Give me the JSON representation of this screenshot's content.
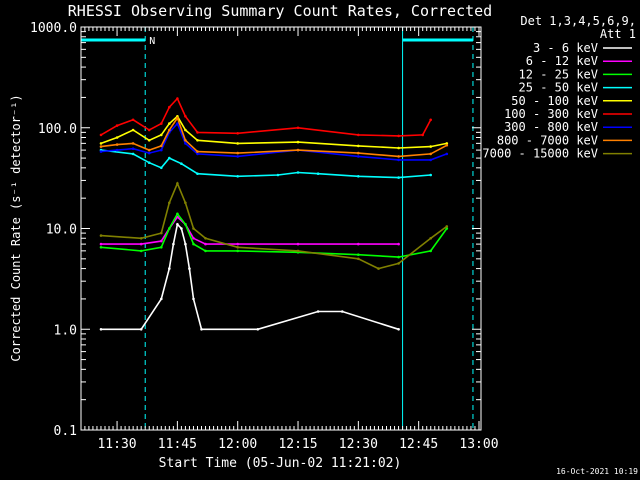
{
  "chart_data": {
    "type": "line",
    "title": "RHESSI Observing Summary Count Rates, Corrected",
    "xlabel": "Start Time (05-Jun-02 11:21:02)",
    "ylabel": "Corrected Count Rate (s⁻¹ detector⁻¹)",
    "y_scale": "log",
    "ylim": [
      0.1,
      1000
    ],
    "xlim": [
      "11:21:02",
      "13:00:30"
    ],
    "x_tick_labels": [
      "11:30",
      "11:45",
      "12:00",
      "12:15",
      "12:30",
      "12:45",
      "13:00"
    ],
    "y_tick_labels": [
      "0.1",
      "1.0",
      "10.0",
      "100.0",
      "1000.0"
    ],
    "grid": false,
    "legend_position": "top-right",
    "legend_header": [
      "Det 1,3,4,5,6,9,",
      "Att 1"
    ],
    "timestamp": "16-Oct-2021 10:19",
    "annotations": [
      {
        "text": "N",
        "x": "11:37"
      }
    ],
    "night_intervals": [
      [
        "11:21:02",
        "11:37:00"
      ],
      [
        "12:41:00",
        "12:58:30"
      ]
    ],
    "saa_markers": [
      "11:37:00",
      "12:58:30"
    ],
    "series": [
      {
        "name": "3 - 6 keV",
        "color": "#ffffff",
        "x": [
          "11:26",
          "11:36",
          "11:41",
          "11:43",
          "11:44",
          "11:45",
          "11:46",
          "11:47",
          "11:48",
          "11:49",
          "11:51",
          "12:05",
          "12:20",
          "12:26",
          "12:40"
        ],
        "y": [
          1.0,
          1.0,
          2.0,
          4.0,
          7.0,
          11.0,
          10.0,
          7.0,
          4.0,
          2.0,
          1.0,
          1.0,
          1.5,
          1.5,
          1.0
        ]
      },
      {
        "name": "6 - 12 keV",
        "color": "#ff00ff",
        "x": [
          "11:26",
          "11:36",
          "11:41",
          "11:43",
          "11:45",
          "11:47",
          "11:49",
          "11:52",
          "12:00",
          "12:15",
          "12:30",
          "12:40"
        ],
        "y": [
          7.0,
          7.0,
          7.5,
          10.0,
          13.0,
          11.0,
          8.0,
          7.0,
          7.0,
          7.0,
          7.0,
          7.0
        ]
      },
      {
        "name": "12 - 25 keV",
        "color": "#00ff00",
        "x": [
          "11:26",
          "11:36",
          "11:41",
          "11:43",
          "11:45",
          "11:47",
          "11:49",
          "11:52",
          "12:00",
          "12:15",
          "12:30",
          "12:40",
          "12:48",
          "12:52"
        ],
        "y": [
          6.5,
          6.0,
          6.5,
          10.0,
          14.0,
          11.0,
          7.0,
          6.0,
          6.0,
          5.8,
          5.5,
          5.2,
          6.0,
          10.0
        ]
      },
      {
        "name": "25 - 50 keV",
        "color": "#00ffff",
        "x": [
          "11:26",
          "11:34",
          "11:38",
          "11:41",
          "11:43",
          "11:46",
          "11:50",
          "12:00",
          "12:10",
          "12:15",
          "12:20",
          "12:30",
          "12:40",
          "12:48"
        ],
        "y": [
          60,
          55,
          45,
          40,
          50,
          44,
          35,
          33,
          34,
          36,
          35,
          33,
          32,
          34
        ]
      },
      {
        "name": "50 - 100 keV",
        "color": "#ffff00",
        "x": [
          "11:26",
          "11:30",
          "11:34",
          "11:38",
          "11:41",
          "11:43",
          "11:45",
          "11:47",
          "11:50",
          "12:00",
          "12:15",
          "12:30",
          "12:40",
          "12:48",
          "12:52"
        ],
        "y": [
          70,
          80,
          95,
          75,
          85,
          110,
          130,
          95,
          75,
          70,
          72,
          66,
          63,
          65,
          70
        ]
      },
      {
        "name": "100 - 300 keV",
        "color": "#ff0000",
        "x": [
          "11:26",
          "11:30",
          "11:34",
          "11:38",
          "11:41",
          "11:43",
          "11:45",
          "11:47",
          "11:50",
          "12:00",
          "12:15",
          "12:30",
          "12:40",
          "12:46",
          "12:48"
        ],
        "y": [
          85,
          105,
          120,
          95,
          110,
          160,
          195,
          130,
          90,
          88,
          100,
          85,
          83,
          85,
          120
        ]
      },
      {
        "name": "300 - 800 keV",
        "color": "#0000ff",
        "x": [
          "11:26",
          "11:30",
          "11:34",
          "11:38",
          "11:41",
          "11:43",
          "11:45",
          "11:47",
          "11:50",
          "12:00",
          "12:15",
          "12:30",
          "12:40",
          "12:48",
          "12:52"
        ],
        "y": [
          58,
          60,
          62,
          56,
          60,
          90,
          110,
          70,
          55,
          52,
          60,
          52,
          48,
          48,
          55
        ]
      },
      {
        "name": "800 - 7000 keV",
        "color": "#ff8000",
        "x": [
          "11:26",
          "11:30",
          "11:34",
          "11:38",
          "11:41",
          "11:43",
          "11:45",
          "11:47",
          "11:50",
          "12:00",
          "12:15",
          "12:30",
          "12:40",
          "12:48",
          "12:52"
        ],
        "y": [
          65,
          68,
          70,
          60,
          66,
          95,
          125,
          75,
          58,
          56,
          60,
          56,
          52,
          55,
          67
        ]
      },
      {
        "name": "7000 - 15000 keV",
        "color": "#808000",
        "x": [
          "11:26",
          "11:36",
          "11:41",
          "11:43",
          "11:45",
          "11:47",
          "11:49",
          "11:52",
          "12:00",
          "12:15",
          "12:30",
          "12:35",
          "12:40",
          "12:48",
          "12:52"
        ],
        "y": [
          8.5,
          8.0,
          9.0,
          18.0,
          28.0,
          18.0,
          10.0,
          8.0,
          6.5,
          6.0,
          5.0,
          4.0,
          4.5,
          8.0,
          10.5
        ]
      }
    ]
  }
}
